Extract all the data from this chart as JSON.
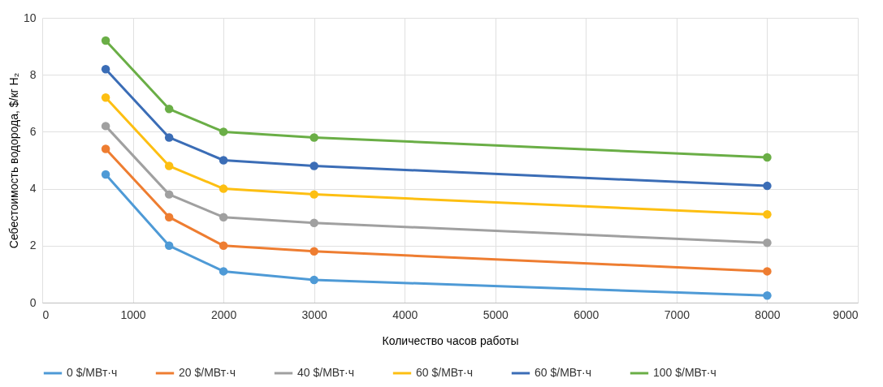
{
  "chart_data": {
    "type": "line",
    "xlabel": "Количество часов работы",
    "ylabel": "Себестоимость водорода, $/кг H₂",
    "x": [
      700,
      1400,
      2000,
      3000,
      8000
    ],
    "xlim": [
      0,
      9000
    ],
    "xticks": [
      0,
      1000,
      2000,
      3000,
      4000,
      5000,
      6000,
      7000,
      8000,
      9000
    ],
    "ylim": [
      0,
      10
    ],
    "yticks": [
      0,
      2,
      4,
      6,
      8,
      10
    ],
    "grid": true,
    "legend": "bottom",
    "marker": "circle",
    "line_style": "solid",
    "series": [
      {
        "name": "0 $/МВт·ч",
        "color": "#4e9ad6",
        "values": [
          4.5,
          2,
          1.1,
          0.8,
          0.25
        ]
      },
      {
        "name": "20 $/МВт·ч",
        "color": "#ee7d31",
        "values": [
          5.4,
          3,
          2,
          1.8,
          1.1
        ]
      },
      {
        "name": "40 $/МВт·ч",
        "color": "#a0a0a0",
        "values": [
          6.2,
          3.8,
          3,
          2.8,
          2.1
        ]
      },
      {
        "name": "60 $/МВт·ч",
        "color": "#fdbf12",
        "values": [
          7.2,
          4.8,
          4,
          3.8,
          3.1
        ]
      },
      {
        "name": "60 $/МВт·ч",
        "color": "#3b6db6",
        "values": [
          8.2,
          5.8,
          5,
          4.8,
          4.1
        ]
      },
      {
        "name": "100 $/МВт·ч",
        "color": "#6aae46",
        "values": [
          9.2,
          6.8,
          6,
          5.8,
          5.1
        ]
      }
    ]
  }
}
